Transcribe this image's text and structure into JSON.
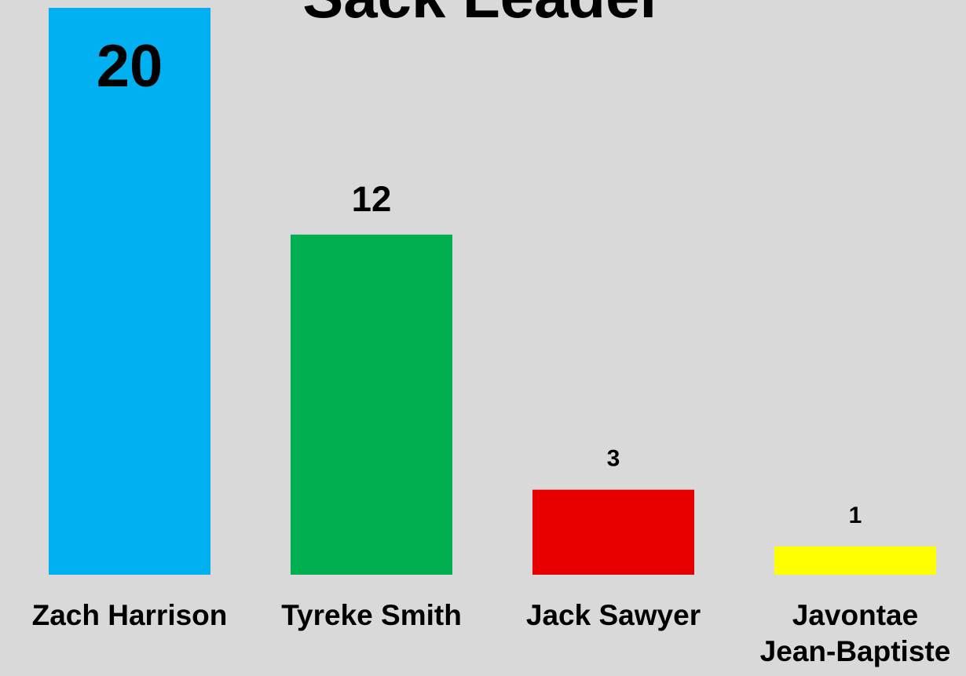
{
  "chart_data": {
    "type": "bar",
    "title": "Sack Leader",
    "categories": [
      "Zach Harrison",
      "Tyreke Smith",
      "Jack Sawyer",
      "Javontae Jean-Baptiste"
    ],
    "category_lines": [
      [
        "Zach Harrison"
      ],
      [
        "Tyreke Smith"
      ],
      [
        "Jack Sawyer"
      ],
      [
        "Javontae",
        "Jean-Baptiste"
      ]
    ],
    "values": [
      20,
      12,
      3,
      1
    ],
    "data_labels": [
      "20",
      "12",
      "3",
      "1"
    ],
    "colors": [
      "#00b0f0",
      "#00b050",
      "#e60000",
      "#ffff00"
    ],
    "background": "#d9d9d9",
    "ylim": [
      0,
      20
    ],
    "grid": false,
    "legend": "none",
    "xlabel": "",
    "ylabel": ""
  }
}
